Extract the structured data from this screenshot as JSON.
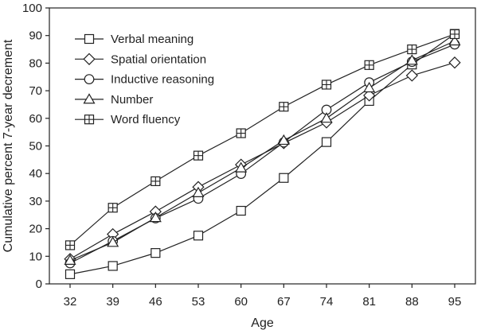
{
  "chart_data": {
    "type": "line",
    "xlabel": "Age",
    "ylabel": "Cumulative percent 7-year decrement",
    "x": [
      32,
      39,
      46,
      53,
      60,
      67,
      74,
      81,
      88,
      95
    ],
    "x_tick_labels": [
      "32",
      "39",
      "46",
      "53",
      "60",
      "67",
      "74",
      "81",
      "88",
      "95"
    ],
    "ylim": [
      0,
      100
    ],
    "y_ticks": [
      0,
      10,
      20,
      30,
      40,
      50,
      60,
      70,
      80,
      90,
      100
    ],
    "y_tick_labels": [
      "0",
      "10",
      "20",
      "30",
      "40",
      "50",
      "60",
      "70",
      "80",
      "90",
      "100"
    ],
    "grid": false,
    "legend_position": "top-left",
    "series": [
      {
        "name": "Verbal meaning",
        "marker": "square",
        "values": [
          3.5,
          6.5,
          11.2,
          17.5,
          26.5,
          38.4,
          51.4,
          66.3,
          79.5,
          90.6
        ]
      },
      {
        "name": "Spatial orientation",
        "marker": "diamond",
        "values": [
          9.0,
          18.0,
          26.2,
          35.1,
          43.2,
          51.0,
          58.5,
          68.3,
          75.5,
          80.2
        ]
      },
      {
        "name": "Inductive reasoning",
        "marker": "circle",
        "values": [
          7.5,
          15.5,
          23.8,
          30.9,
          39.9,
          51.3,
          63.1,
          73.0,
          80.5,
          86.8
        ]
      },
      {
        "name": "Number",
        "marker": "triangle",
        "values": [
          8.5,
          15.0,
          24.0,
          33.0,
          42.0,
          52.0,
          60.0,
          71.0,
          81.0,
          88.0
        ]
      },
      {
        "name": "Word fluency",
        "marker": "square-cross",
        "values": [
          14.0,
          27.6,
          37.2,
          46.5,
          54.6,
          64.2,
          72.2,
          79.3,
          85.0,
          90.5
        ]
      }
    ]
  }
}
